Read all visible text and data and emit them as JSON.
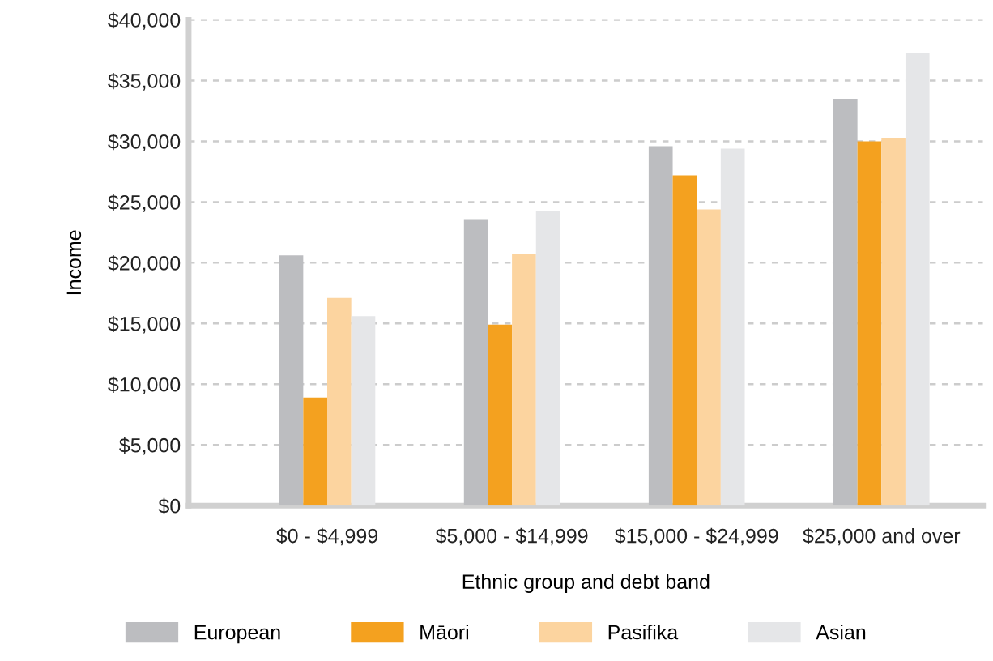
{
  "chart_data": {
    "type": "bar",
    "xlabel": "Ethnic group and debt band",
    "ylabel": "Income",
    "categories": [
      "$0 - $4,999",
      "$5,000 - $14,999",
      "$15,000 - $24,999",
      "$25,000 and over"
    ],
    "series": [
      {
        "name": "European",
        "color": "#bcbdc0",
        "values": [
          20600,
          23600,
          29600,
          33500
        ]
      },
      {
        "name": "Māori",
        "color": "#f4a11f",
        "values": [
          8900,
          14900,
          27200,
          30000
        ]
      },
      {
        "name": "Pasifika",
        "color": "#fcd49f",
        "values": [
          17100,
          20700,
          24400,
          30300
        ]
      },
      {
        "name": "Asian",
        "color": "#e5e6e8",
        "values": [
          15600,
          24300,
          29400,
          37300
        ]
      }
    ],
    "ylim": [
      0,
      40000
    ],
    "yticks": [
      {
        "value": 0,
        "label": "$0"
      },
      {
        "value": 5000,
        "label": "$5,000"
      },
      {
        "value": 10000,
        "label": "$10,000"
      },
      {
        "value": 15000,
        "label": "$15,000"
      },
      {
        "value": 20000,
        "label": "$20,000"
      },
      {
        "value": 25000,
        "label": "$25,000"
      },
      {
        "value": 30000,
        "label": "$30,000"
      },
      {
        "value": 35000,
        "label": "$35,000"
      },
      {
        "value": 40000,
        "label": "$40,000"
      }
    ],
    "grid": "y",
    "legend": "bottom"
  }
}
